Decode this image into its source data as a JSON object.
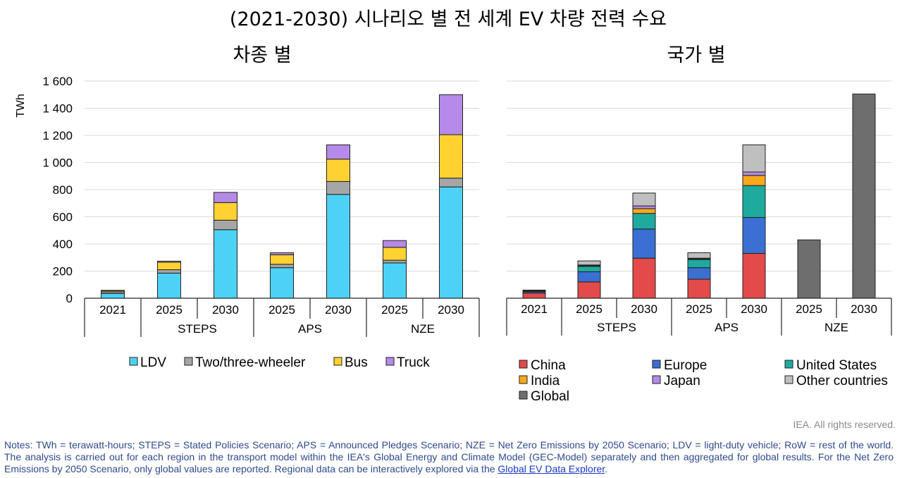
{
  "main_title": "(2021-2030) 시나리오 별 전 세계 EV 차량 전력 수요",
  "colors": {
    "LDV": "#4dd2f6",
    "Two/three-wheeler": "#a6a6a6",
    "Bus": "#ffd231",
    "Truck": "#b58ae8",
    "China": "#e34a4a",
    "Europe": "#3b6fd1",
    "United States": "#1eab9d",
    "India": "#f7a81b",
    "Japan": "#b58ae8",
    "Other countries": "#bfbfbf",
    "Global": "#6e6e6e"
  },
  "chart_data": [
    {
      "type": "bar",
      "stacked": true,
      "title": "차종 별",
      "ylabel": "TWh",
      "ylim": [
        0,
        1600
      ],
      "yticks": [
        0,
        200,
        400,
        600,
        800,
        1000,
        1200,
        1400,
        1600
      ],
      "ytick_labels": [
        "0",
        "200",
        "400",
        "600",
        "800",
        "1 000",
        "1 200",
        "1 400",
        "1 600"
      ],
      "categories": [
        "2021",
        "2025",
        "2030",
        "2025",
        "2030",
        "2025",
        "2030"
      ],
      "groups": [
        {
          "label": "",
          "span": 1
        },
        {
          "label": "STEPS",
          "span": 2
        },
        {
          "label": "APS",
          "span": 2
        },
        {
          "label": "NZE",
          "span": 2
        }
      ],
      "series": [
        {
          "name": "LDV",
          "values": [
            35,
            185,
            505,
            225,
            765,
            260,
            820
          ]
        },
        {
          "name": "Two/three-wheeler",
          "values": [
            12,
            25,
            70,
            25,
            95,
            20,
            65
          ]
        },
        {
          "name": "Bus",
          "values": [
            8,
            55,
            130,
            70,
            165,
            95,
            320
          ]
        },
        {
          "name": "Truck",
          "values": [
            3,
            8,
            75,
            15,
            105,
            50,
            295
          ]
        }
      ],
      "legend": [
        "LDV",
        "Two/three-wheeler",
        "Bus",
        "Truck"
      ],
      "legend_position": "bottom"
    },
    {
      "type": "bar",
      "stacked": true,
      "title": "국가 별",
      "ylim": [
        0,
        1600
      ],
      "categories": [
        "2021",
        "2025",
        "2030",
        "2025",
        "2030",
        "2025",
        "2030"
      ],
      "groups": [
        {
          "label": "",
          "span": 1
        },
        {
          "label": "STEPS",
          "span": 2
        },
        {
          "label": "APS",
          "span": 2
        },
        {
          "label": "NZE",
          "span": 2
        }
      ],
      "series": [
        {
          "name": "China",
          "values": [
            38,
            120,
            295,
            140,
            330,
            0,
            0
          ]
        },
        {
          "name": "Europe",
          "values": [
            10,
            75,
            215,
            85,
            265,
            0,
            0
          ]
        },
        {
          "name": "United States",
          "values": [
            5,
            40,
            115,
            60,
            235,
            0,
            0
          ]
        },
        {
          "name": "India",
          "values": [
            1,
            5,
            35,
            5,
            75,
            0,
            0
          ]
        },
        {
          "name": "Japan",
          "values": [
            1,
            5,
            20,
            5,
            25,
            0,
            0
          ]
        },
        {
          "name": "Other countries",
          "values": [
            5,
            30,
            95,
            40,
            200,
            0,
            0
          ]
        },
        {
          "name": "Global",
          "values": [
            0,
            0,
            0,
            0,
            0,
            430,
            1505
          ]
        }
      ],
      "legend": [
        "China",
        "Europe",
        "United States",
        "India",
        "Japan",
        "Other countries",
        "Global"
      ],
      "legend_position": "bottom"
    }
  ],
  "footer": {
    "rights": "IEA. All rights reserved.",
    "notes": "Notes: TWh = terawatt-hours; STEPS = Stated Policies Scenario; APS = Announced Pledges Scenario; NZE = Net Zero Emissions by 2050 Scenario; LDV = light-duty vehicle; RoW = rest of the world. The analysis is carried out for each region in the transport model within the IEA's Global Energy and Climate Model (GEC-Model) separately and then aggregated for global results. For the Net Zero Emissions by 2050 Scenario, only global values are reported. Regional data can be interactively explored via the",
    "link_text": "Global EV Data Explorer",
    "notes_end": "."
  }
}
